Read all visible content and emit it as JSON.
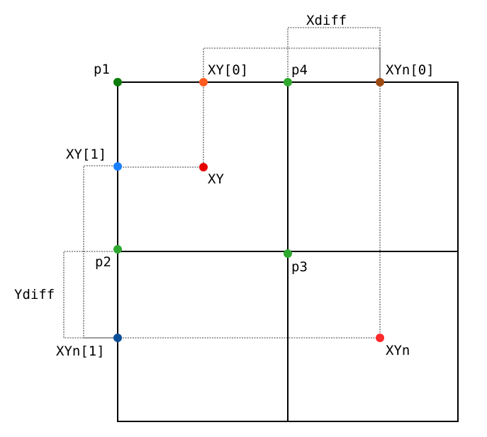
{
  "labels": {
    "p1": "p1",
    "p2": "p2",
    "p3": "p3",
    "p4": "p4",
    "xy0": "XY[0]",
    "xy1": "XY[1]",
    "xy": "XY",
    "xyn0": "XYn[0]",
    "xyn1": "XYn[1]",
    "xyn": "XYn",
    "xdiff": "Xdiff",
    "ydiff": "Ydiff"
  },
  "colors": {
    "p1": "#0a7d0a",
    "p2": "#2ea82e",
    "p3": "#2ea82e",
    "p4": "#2ea82e",
    "xy0": "#ff5a1f",
    "xy1": "#1a7fff",
    "xy": "#e80000",
    "xyn0": "#9c4a12",
    "xyn1": "#0b4f99",
    "xyn": "#ff2a2a"
  }
}
